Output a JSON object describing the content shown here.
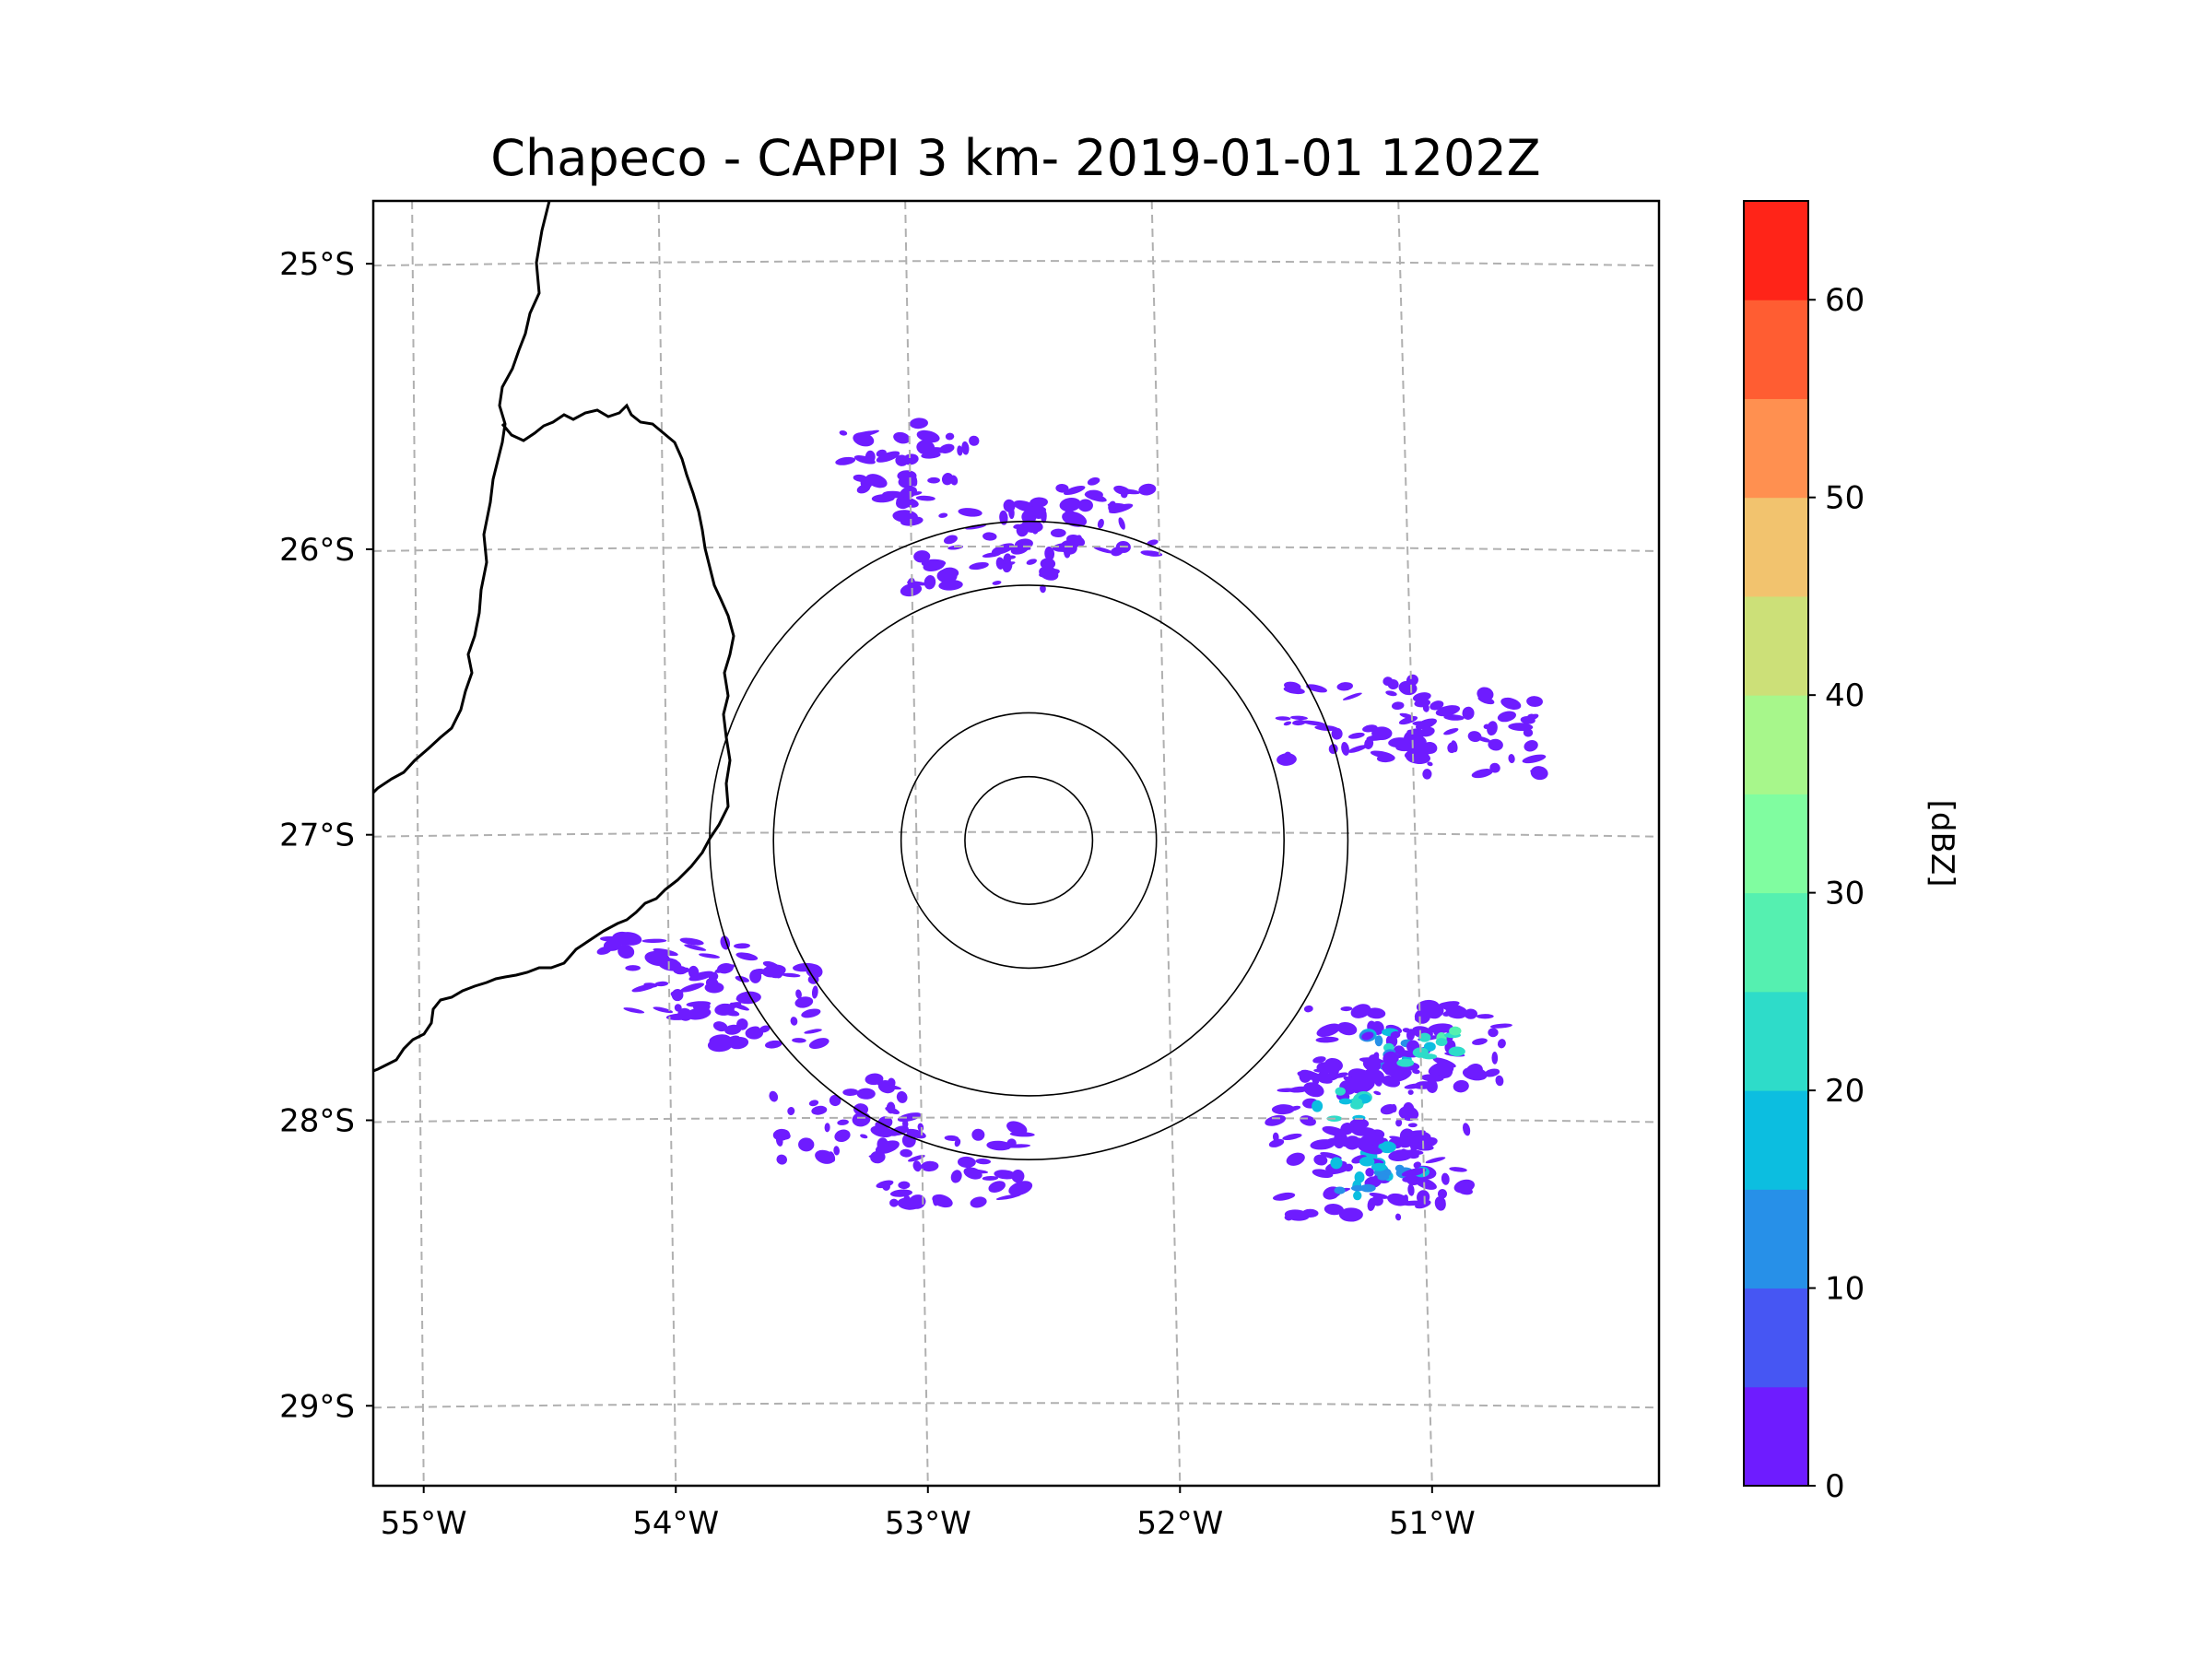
{
  "title": "Chapeco - CAPPI 3 km- 2019-01-01 1202Z",
  "map": {
    "lon_ticks": [
      {
        "lon": -55,
        "label": "55°W"
      },
      {
        "lon": -54,
        "label": "54°W"
      },
      {
        "lon": -53,
        "label": "53°W"
      },
      {
        "lon": -52,
        "label": "52°W"
      },
      {
        "lon": -51,
        "label": "51°W"
      }
    ],
    "lat_ticks": [
      {
        "lat": -25,
        "label": "25°S"
      },
      {
        "lat": -26,
        "label": "26°S"
      },
      {
        "lat": -27,
        "label": "27°S"
      },
      {
        "lat": -28,
        "label": "28°S"
      },
      {
        "lat": -29,
        "label": "29°S"
      }
    ],
    "extent": {
      "lon_min": -55.2,
      "lon_max": -50.1,
      "lat_min": -29.28,
      "lat_max": -24.78
    },
    "radar_center": {
      "lon": -52.6,
      "lat": -27.02
    },
    "range_rings_km": [
      50,
      100,
      200,
      250
    ],
    "grid_lines": "dashed"
  },
  "colorbar": {
    "label": "[dBZ]",
    "min": 0,
    "max": 65,
    "step": 5,
    "tick_values": [
      0,
      10,
      20,
      30,
      40,
      50,
      60
    ],
    "tick_labels": [
      "0",
      "10",
      "20",
      "30",
      "40",
      "50",
      "60"
    ],
    "colors": [
      "#6e1cff",
      "#4656f3",
      "#2790e8",
      "#0cbee0",
      "#2edcc9",
      "#55f0b0",
      "#80fda0",
      "#a7f78b",
      "#cce078",
      "#f2c36e",
      "#ff9050",
      "#ff5d32",
      "#ff2418"
    ]
  },
  "chart_data": {
    "type": "radar-reflectivity-map",
    "title": "Chapeco - CAPPI 3 km- 2019-01-01 1202Z",
    "xlabel": "",
    "ylabel": "",
    "units": "dBZ",
    "echo_cells": [
      {
        "region": "north",
        "lon": -53.1,
        "lat": -25.7,
        "dbz": 5
      },
      {
        "region": "north",
        "lon": -52.8,
        "lat": -26.0,
        "dbz": 2
      },
      {
        "region": "north",
        "lon": -52.4,
        "lat": -25.9,
        "dbz": 2
      },
      {
        "region": "east",
        "lon": -51.3,
        "lat": -26.6,
        "dbz": 5
      },
      {
        "region": "east",
        "lon": -50.85,
        "lat": -26.65,
        "dbz": 5
      },
      {
        "region": "southwest",
        "lon": -53.7,
        "lat": -27.6,
        "dbz": 5
      },
      {
        "region": "southwest",
        "lon": -54.0,
        "lat": -27.5,
        "dbz": 3
      },
      {
        "region": "southeast",
        "lon": -51.2,
        "lat": -27.75,
        "dbz": 22
      },
      {
        "region": "southeast",
        "lon": -51.35,
        "lat": -27.95,
        "dbz": 25
      },
      {
        "region": "southeast",
        "lon": -51.15,
        "lat": -28.15,
        "dbz": 20
      },
      {
        "region": "southeast",
        "lon": -51.3,
        "lat": -28.2,
        "dbz": 18
      },
      {
        "region": "southeast",
        "lon": -51.0,
        "lat": -27.74,
        "dbz": 28
      },
      {
        "region": "south",
        "lon": -52.9,
        "lat": -28.15,
        "dbz": 8
      },
      {
        "region": "south",
        "lon": -53.35,
        "lat": -28.0,
        "dbz": 5
      }
    ]
  }
}
